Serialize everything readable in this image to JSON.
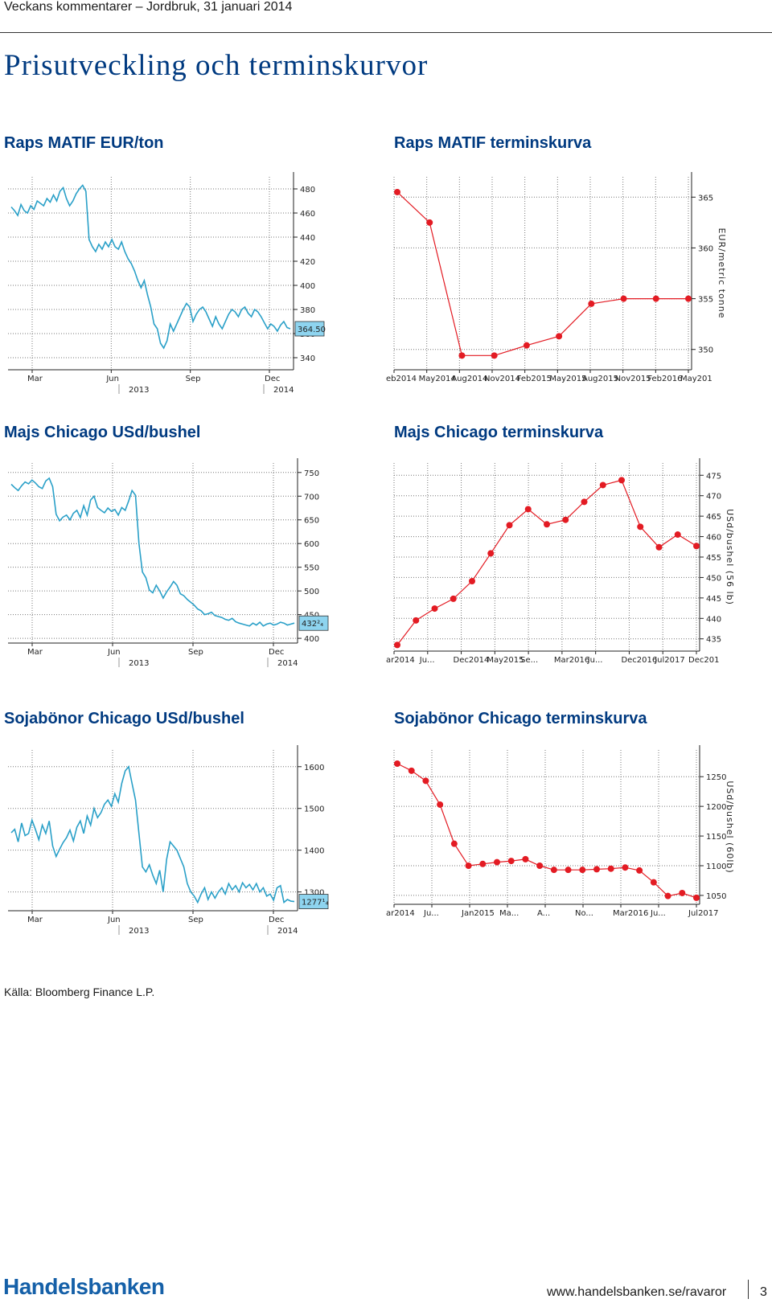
{
  "header": {
    "text": "Veckans kommentarer – Jordbruk, 31 januari 2014"
  },
  "page_title": "Prisutveckling och terminskurvor",
  "source": "Källa: Bloomberg Finance L.P.",
  "footer": {
    "logo": "Handelsbanken",
    "url": "www.handelsbanken.se/ravaror",
    "page": "3"
  },
  "colors": {
    "blue": "#2aa0c8",
    "red": "#e31b23",
    "title": "#003a80",
    "label_box": "#8ed4ef"
  },
  "chart_data": [
    {
      "type": "line",
      "title": "Raps MATIF EUR/ton",
      "x_ticks": [
        "Mar",
        "Jun",
        "Sep",
        "Dec"
      ],
      "year_labels": [
        "2013",
        "2014"
      ],
      "y_ticks": [
        480,
        460,
        440,
        420,
        400,
        380,
        360,
        340
      ],
      "ylim": [
        330,
        490
      ],
      "last_value_label": "364.50",
      "series": [
        {
          "values": [
            465,
            462,
            458,
            467,
            462,
            460,
            466,
            463,
            470,
            468,
            466,
            472,
            469,
            475,
            470,
            478,
            481,
            472,
            466,
            470,
            476,
            480,
            483,
            478,
            438,
            432,
            428,
            434,
            430,
            436,
            432,
            438,
            432,
            430,
            436,
            428,
            422,
            418,
            412,
            404,
            398,
            404,
            392,
            382,
            368,
            364,
            352,
            348,
            354,
            368,
            362,
            368,
            374,
            380,
            385,
            382,
            370,
            376,
            380,
            382,
            378,
            372,
            366,
            374,
            368,
            364,
            370,
            376,
            380,
            378,
            374,
            380,
            382,
            377,
            374,
            380,
            378,
            374,
            369,
            364,
            368,
            366,
            362,
            367,
            370,
            365,
            364
          ]
        }
      ]
    },
    {
      "type": "line",
      "title": "Raps MATIF terminskurva",
      "x_ticks": [
        "eb2014",
        "May2014",
        "Aug2014",
        "Nov2014",
        "Feb2015",
        "May2015",
        "Aug2015",
        "Nov2015",
        "Feb2016",
        "May201"
      ],
      "y_ticks": [
        365,
        360,
        355,
        350
      ],
      "ylim": [
        348,
        367
      ],
      "ylabel": "EUR/metric tonne",
      "series": [
        {
          "values": [
            365.5,
            362.5,
            349.4,
            349.4,
            350.4,
            351.3,
            354.5,
            355.0,
            355.0,
            355.0
          ]
        }
      ]
    },
    {
      "type": "line",
      "title": "Majs Chicago USd/bushel",
      "x_ticks": [
        "Mar",
        "Jun",
        "Sep",
        "Dec"
      ],
      "year_labels": [
        "2013",
        "2014"
      ],
      "y_ticks": [
        750,
        700,
        650,
        600,
        550,
        500,
        450,
        400
      ],
      "ylim": [
        390,
        770
      ],
      "last_value_label": "432²₄",
      "series": [
        {
          "values": [
            725,
            718,
            712,
            722,
            730,
            726,
            734,
            728,
            720,
            716,
            732,
            738,
            720,
            662,
            648,
            656,
            660,
            650,
            664,
            670,
            655,
            680,
            660,
            692,
            700,
            676,
            670,
            665,
            675,
            668,
            672,
            660,
            676,
            670,
            690,
            712,
            702,
            600,
            540,
            528,
            502,
            496,
            512,
            500,
            485,
            498,
            508,
            520,
            512,
            494,
            490,
            482,
            476,
            470,
            462,
            458,
            450,
            452,
            455,
            448,
            446,
            444,
            440,
            438,
            442,
            435,
            432,
            430,
            428,
            426,
            432,
            428,
            434,
            426,
            430,
            432,
            428,
            430,
            434,
            432,
            428,
            430,
            432
          ]
        }
      ]
    },
    {
      "type": "line",
      "title": "Majs Chicago terminskurva",
      "x_ticks": [
        "ar2014",
        "Ju...",
        "Dec2014",
        "May2015",
        "Se...",
        "Mar2016",
        "Ju...",
        "Dec2016",
        "Jul2017",
        "Dec201"
      ],
      "y_ticks": [
        475,
        470,
        465,
        460,
        455,
        450,
        445,
        440,
        435
      ],
      "ylim": [
        432,
        478
      ],
      "ylabel": "USd/bushel (56 lb)",
      "series": [
        {
          "values": [
            433.5,
            439.5,
            442.4,
            444.8,
            449.1,
            455.9,
            462.8,
            466.7,
            463.0,
            464.1,
            468.5,
            472.6,
            473.8,
            462.4,
            457.4,
            460.5,
            457.7
          ]
        }
      ]
    },
    {
      "type": "line",
      "title": "Sojabönor Chicago USd/bushel",
      "x_ticks": [
        "Mar",
        "Jun",
        "Sep",
        "Dec"
      ],
      "year_labels": [
        "2013",
        "2014"
      ],
      "y_ticks": [
        1600,
        1500,
        1400,
        1300
      ],
      "ylim": [
        1255,
        1640
      ],
      "last_value_label": "1277¹₄",
      "series": [
        {
          "values": [
            1442,
            1450,
            1420,
            1465,
            1435,
            1440,
            1472,
            1450,
            1425,
            1460,
            1440,
            1470,
            1410,
            1385,
            1402,
            1418,
            1430,
            1448,
            1422,
            1455,
            1470,
            1440,
            1482,
            1460,
            1500,
            1478,
            1490,
            1510,
            1520,
            1505,
            1535,
            1515,
            1560,
            1590,
            1600,
            1560,
            1520,
            1440,
            1360,
            1348,
            1365,
            1340,
            1320,
            1352,
            1300,
            1378,
            1420,
            1410,
            1400,
            1380,
            1360,
            1320,
            1300,
            1290,
            1275,
            1295,
            1310,
            1282,
            1300,
            1285,
            1300,
            1310,
            1295,
            1320,
            1305,
            1315,
            1300,
            1322,
            1310,
            1318,
            1305,
            1320,
            1300,
            1310,
            1290,
            1295,
            1280,
            1310,
            1315,
            1275,
            1282,
            1278,
            1277
          ]
        }
      ]
    },
    {
      "type": "line",
      "title": "Sojabönor Chicago terminskurva",
      "x_ticks": [
        "ar2014",
        "Ju...",
        "Jan2015",
        "Ma...",
        "A...",
        "No...",
        "Mar2016",
        "Ju...",
        "Jul2017"
      ],
      "y_ticks": [
        1250,
        1200,
        1150,
        1100,
        1050
      ],
      "ylim": [
        1035,
        1295
      ],
      "ylabel": "USd/bushel (60lb)",
      "series": [
        {
          "values": [
            1272,
            1260,
            1243,
            1203,
            1137,
            1100,
            1103,
            1106,
            1108,
            1111,
            1100,
            1093,
            1093,
            1093,
            1094,
            1095,
            1097,
            1092,
            1072,
            1049,
            1054,
            1046
          ]
        }
      ]
    }
  ]
}
